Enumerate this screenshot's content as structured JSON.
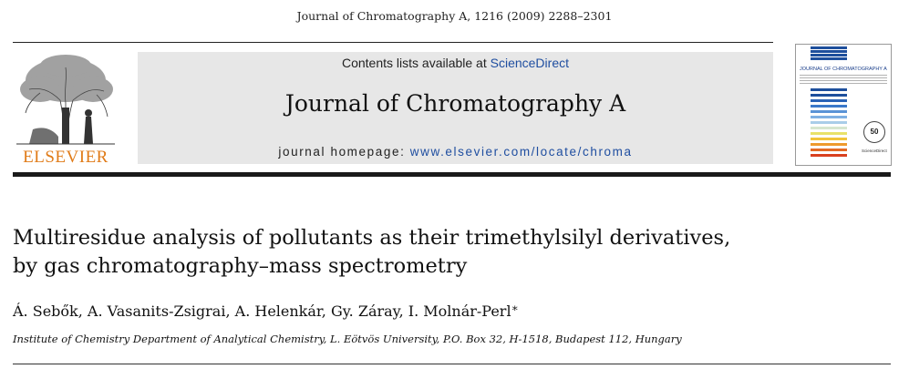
{
  "header": {
    "citation": "Journal of Chromatography A, 1216 (2009) 2288–2301",
    "publisher_logo_text": "ELSEVIER",
    "contents_prefix": "Contents lists available at ",
    "contents_link": "ScienceDirect",
    "journal_title": "Journal of Chromatography A",
    "homepage_prefix": "journal homepage: ",
    "homepage_url": "www.elsevier.com/locate/chroma"
  },
  "cover": {
    "title": "JOURNAL OF CHROMATOGRAPHY A",
    "badge": "50",
    "footer": "ScienceDirect",
    "stripe_colors": [
      "#1e4f9c",
      "#1e4f9c",
      "#2a63b6",
      "#3b78c9",
      "#5a93d6",
      "#7fb0e3",
      "#a9cde9",
      "#d6e6cf",
      "#e9e26a",
      "#f1c43b",
      "#ee9a2c",
      "#e46a24",
      "#d9401f"
    ]
  },
  "article": {
    "title_line1": "Multiresidue analysis of pollutants as their trimethylsilyl derivatives,",
    "title_line2": "by gas chromatography–mass spectrometry",
    "authors": "Á. Sebők, A. Vasanits-Zsigrai, A. Helenkár, Gy. Záray, I. Molnár-Perl",
    "corresponding_mark": "∗",
    "affiliation": "Institute of Chemistry Department of Analytical Chemistry, L. Eötvös University, P.O. Box 32, H-1518, Budapest 112, Hungary"
  },
  "colors": {
    "elsevier_orange": "#e07b18",
    "link_blue": "#1f4ea0",
    "banner_gray": "#e7e7e7"
  }
}
